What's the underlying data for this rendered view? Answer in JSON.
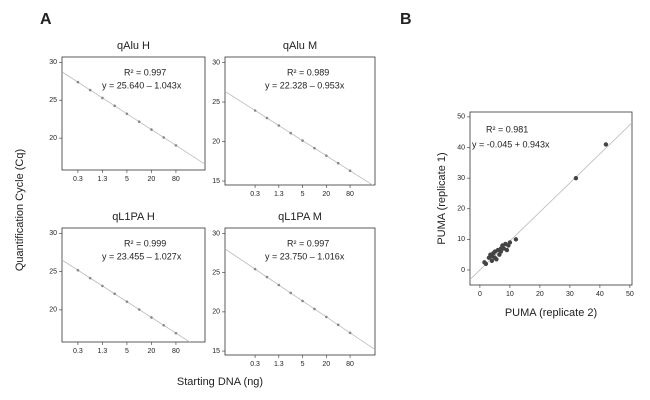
{
  "panel_labels": [
    "A",
    "B"
  ],
  "shared_ylabel": "Quantification Cycle (Cq)",
  "shared_xlabel": "Starting DNA (ng)",
  "chart_data": [
    {
      "type": "scatter",
      "title": "qAlu H",
      "xscale": "log",
      "color": "#888888",
      "x": [
        0.3125,
        0.625,
        1.25,
        2.5,
        5,
        10,
        20,
        40,
        80
      ],
      "values": [
        27.39,
        26.34,
        25.3,
        24.26,
        23.21,
        22.17,
        21.13,
        20.09,
        19.04
      ],
      "xlim": [
        0.127,
        414
      ],
      "ylim": [
        15.8,
        30.7
      ],
      "xticks": [
        {
          "value": 0.3125,
          "label": "0.3"
        },
        {
          "value": 1.25,
          "label": "1.3"
        },
        5,
        20,
        80
      ],
      "yticks": [
        20,
        25,
        30
      ],
      "annotations": [
        "R² = 0.997",
        "y = 25.640 – 1.043x"
      ]
    },
    {
      "type": "scatter",
      "title": "qAlu M",
      "xscale": "log",
      "color": "#888888",
      "x": [
        0.3125,
        0.625,
        1.25,
        2.5,
        5,
        10,
        20,
        40,
        80
      ],
      "values": [
        23.93,
        22.98,
        22.03,
        21.07,
        20.12,
        19.16,
        18.21,
        17.26,
        16.3
      ],
      "xlim": [
        0.054,
        343
      ],
      "ylim": [
        14.5,
        30.7
      ],
      "xticks": [
        {
          "value": 0.3125,
          "label": "0.3"
        },
        {
          "value": 1.25,
          "label": "1.3"
        },
        5,
        20,
        80
      ],
      "yticks": [
        15,
        20,
        25,
        30
      ],
      "annotations": [
        "R² = 0.989",
        "y = 22.328 – 0.953x"
      ]
    },
    {
      "type": "scatter",
      "title": "qL1PA H",
      "xscale": "log",
      "color": "#888888",
      "x": [
        0.3125,
        0.625,
        1.25,
        2.5,
        5,
        10,
        20,
        40,
        80
      ],
      "values": [
        25.18,
        24.15,
        23.13,
        22.1,
        21.07,
        20.04,
        19.01,
        17.99,
        16.96
      ],
      "xlim": [
        0.127,
        414
      ],
      "ylim": [
        15.8,
        30.7
      ],
      "xticks": [
        {
          "value": 0.3125,
          "label": "0.3"
        },
        {
          "value": 1.25,
          "label": "1.3"
        },
        5,
        20,
        80
      ],
      "yticks": [
        20,
        25,
        30
      ],
      "annotations": [
        "R² = 0.999",
        "y = 23.455 – 1.027x"
      ]
    },
    {
      "type": "scatter",
      "title": "qL1PA M",
      "xscale": "log",
      "color": "#888888",
      "x": [
        0.3125,
        0.625,
        1.25,
        2.5,
        5,
        10,
        20,
        40,
        80
      ],
      "values": [
        25.46,
        24.45,
        23.43,
        22.42,
        21.39,
        20.37,
        19.36,
        18.35,
        17.33
      ],
      "xlim": [
        0.054,
        343
      ],
      "ylim": [
        14.5,
        30.7
      ],
      "xticks": [
        {
          "value": 0.3125,
          "label": "0.3"
        },
        {
          "value": 1.25,
          "label": "1.3"
        },
        5,
        20,
        80
      ],
      "yticks": [
        15,
        20,
        25,
        30
      ],
      "annotations": [
        "R² = 0.997",
        "y = 23.750 – 1.016x"
      ]
    },
    {
      "type": "scatter",
      "xscale": "linear",
      "color": "#444444",
      "xlabel": "PUMA (replicate 2)",
      "ylabel": "PUMA (replicate 1)",
      "x": [
        1.5,
        2,
        3,
        3.5,
        4,
        4,
        4.5,
        5,
        5,
        5.5,
        6,
        6.5,
        7,
        7,
        7.5,
        8,
        8.5,
        9,
        9.5,
        10,
        12,
        32,
        42
      ],
      "values": [
        2.5,
        2,
        4,
        5,
        3,
        4.5,
        5.5,
        4,
        6,
        3.5,
        6.5,
        5,
        7,
        6,
        8,
        7,
        8.5,
        6.5,
        8,
        9,
        10,
        30,
        41
      ],
      "xlim": [
        -3.3,
        50.7
      ],
      "ylim": [
        -4.9,
        51.6
      ],
      "xticks": [
        0,
        10,
        20,
        30,
        40,
        50
      ],
      "yticks": [
        0,
        10,
        20,
        30,
        40,
        50
      ],
      "annotations": [
        "R² = 0.981",
        "y = -0.045 + 0.943x"
      ]
    }
  ]
}
